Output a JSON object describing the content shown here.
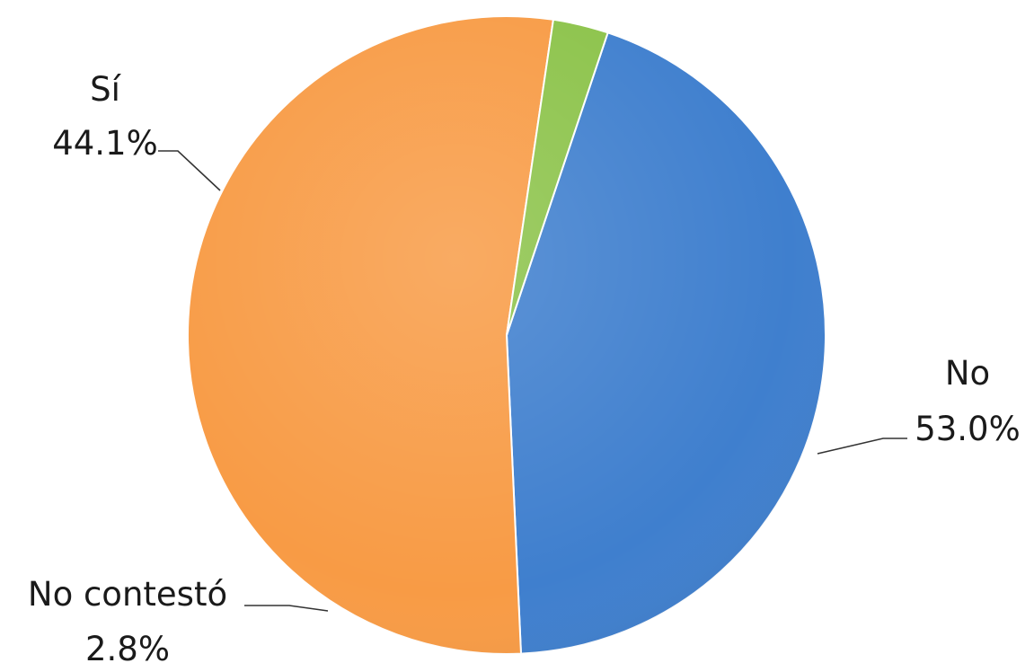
{
  "chart_data": {
    "type": "pie",
    "title": "",
    "slices": [
      {
        "label": "Sí",
        "value": 44.1,
        "value_label": "44.1%",
        "color": "#3f7fce"
      },
      {
        "label": "No",
        "value": 53.0,
        "value_label": "53.0%",
        "color": "#f89b45"
      },
      {
        "label": "No contestó",
        "value": 2.8,
        "value_label": "2.8%",
        "color": "#8cc34a"
      }
    ],
    "legend": "none",
    "data_labels": "outside-with-leader-lines"
  }
}
